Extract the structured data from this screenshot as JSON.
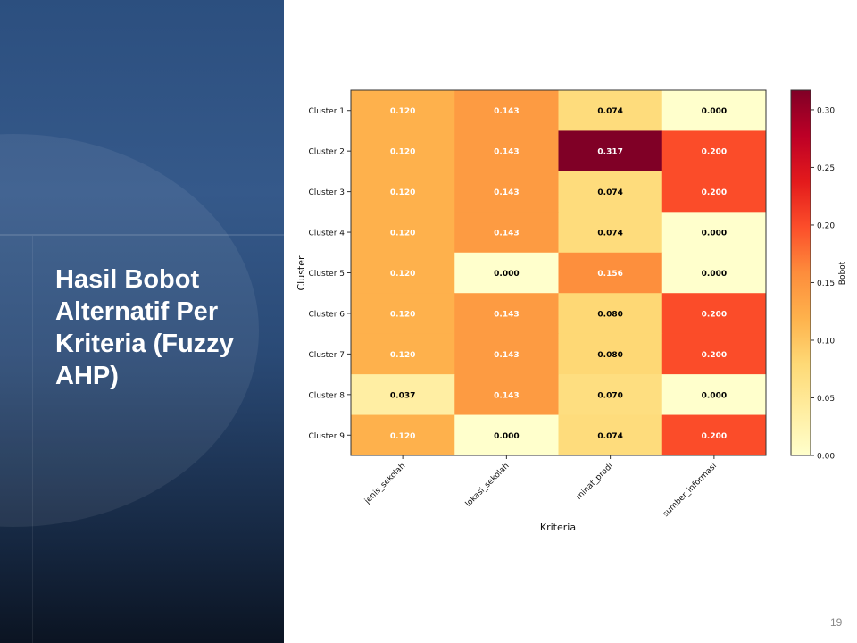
{
  "slide": {
    "title": "Hasil Bobot Alternatif Per Kriteria (Fuzzy AHP)",
    "page_number": "19"
  },
  "chart_data": {
    "type": "heatmap",
    "colormap": "YlOrRd",
    "xlabel": "Kriteria",
    "ylabel": "Cluster",
    "colorbar_label": "Bobot",
    "columns": [
      "jenis_sekolah",
      "lokasi_sekolah",
      "minat_prodi",
      "sumber_informasi"
    ],
    "rows": [
      "Cluster 1",
      "Cluster 2",
      "Cluster 3",
      "Cluster 4",
      "Cluster 5",
      "Cluster 6",
      "Cluster 7",
      "Cluster 8",
      "Cluster 9"
    ],
    "values": [
      [
        0.12,
        0.143,
        0.074,
        0.0
      ],
      [
        0.12,
        0.143,
        0.317,
        0.2
      ],
      [
        0.12,
        0.143,
        0.074,
        0.2
      ],
      [
        0.12,
        0.143,
        0.074,
        0.0
      ],
      [
        0.12,
        0.0,
        0.156,
        0.0
      ],
      [
        0.12,
        0.143,
        0.08,
        0.2
      ],
      [
        0.12,
        0.143,
        0.08,
        0.2
      ],
      [
        0.037,
        0.143,
        0.07,
        0.0
      ],
      [
        0.12,
        0.0,
        0.074,
        0.2
      ]
    ],
    "colorbar_range": [
      0.0,
      0.317
    ],
    "colorbar_ticks": [
      "0.00",
      "0.05",
      "0.10",
      "0.15",
      "0.20",
      "0.25",
      "0.30"
    ]
  }
}
